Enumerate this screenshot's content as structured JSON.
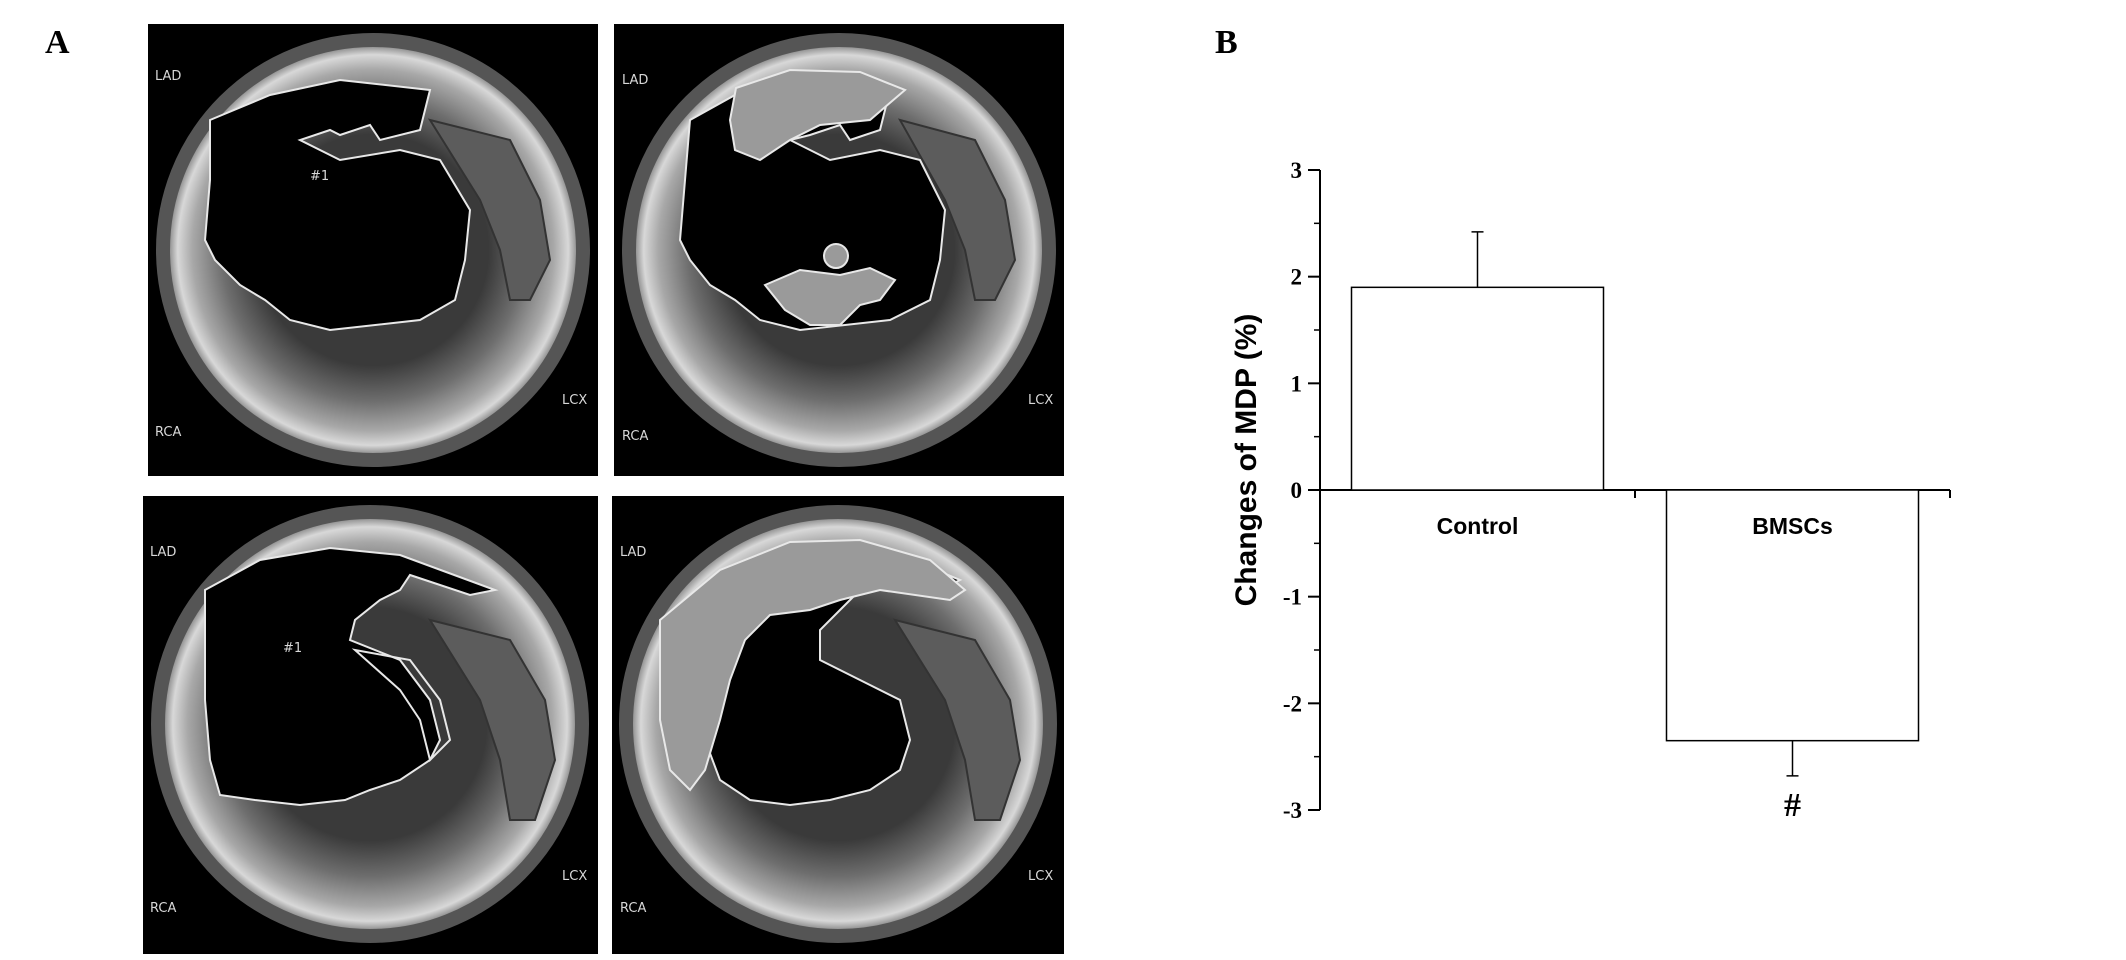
{
  "figure": {
    "panel_a_letter": "A",
    "panel_b_letter": "B"
  },
  "polar_maps": [
    {
      "id": "top-left",
      "labels": {
        "lad": "LAD",
        "rca": "RCA",
        "lcx": "LCX",
        "region": "#1"
      }
    },
    {
      "id": "top-right",
      "labels": {
        "lad": "LAD",
        "rca": "RCA",
        "lcx": "LCX",
        "region": ""
      }
    },
    {
      "id": "bottom-left",
      "labels": {
        "lad": "LAD",
        "rca": "RCA",
        "lcx": "LCX",
        "region": "#1"
      }
    },
    {
      "id": "bottom-right",
      "labels": {
        "lad": "LAD",
        "rca": "RCA",
        "lcx": "LCX",
        "region": ""
      }
    }
  ],
  "chart_data": {
    "type": "bar",
    "categories": [
      "Control",
      "BMSCs"
    ],
    "values": [
      1.9,
      -2.35
    ],
    "errors": [
      0.52,
      0.33
    ],
    "error_direction": [
      "up",
      "down"
    ],
    "annotations": [
      "",
      "#"
    ],
    "ylabel": "Changes of MDP (%)",
    "xlabel": "",
    "ylim": [
      -3,
      3
    ],
    "yticks": [
      3,
      2,
      1,
      0,
      -1,
      -2,
      -3
    ],
    "grid": false,
    "bar_fill": "#ffffff",
    "bar_stroke": "#000000"
  }
}
